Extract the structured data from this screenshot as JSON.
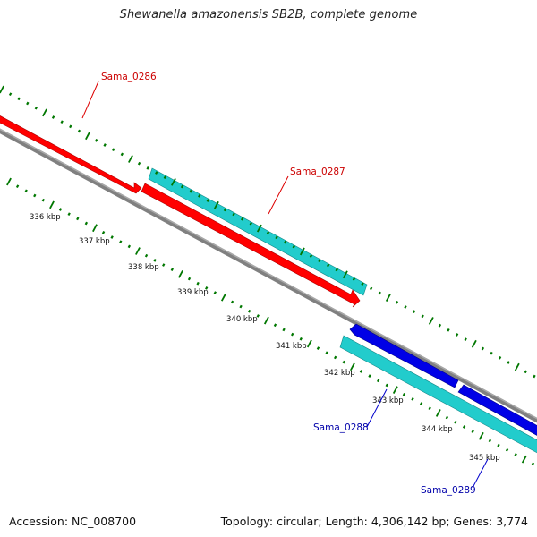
{
  "header": {
    "title": "Shewanella amazonensis SB2B, complete genome"
  },
  "footer": {
    "accession": "Accession: NC_008700",
    "summary": "Topology: circular; Length: 4,306,142 bp; Genes: 3,774"
  },
  "colors": {
    "forward_cds": "#ff0000",
    "reverse_cds": "#0000e6",
    "rna_band": "#22cccc",
    "backbone": "#808080",
    "tick": "#007700",
    "label_forward": "#cc0000",
    "label_reverse": "#0000aa"
  },
  "ticks": {
    "labels": [
      "336 kbp",
      "337 kbp",
      "338 kbp",
      "339 kbp",
      "340 kbp",
      "341 kbp",
      "342 kbp",
      "343 kbp",
      "344 kbp",
      "345 kbp"
    ]
  },
  "genes": [
    {
      "name": "Sama_0286",
      "strand": "forward",
      "icon": "arrow-right"
    },
    {
      "name": "Sama_0287",
      "strand": "forward",
      "icon": "arrow-right"
    },
    {
      "name": "Sama_0288",
      "strand": "reverse",
      "icon": "arrow-left"
    },
    {
      "name": "Sama_0289",
      "strand": "reverse",
      "icon": "arrow-left"
    }
  ]
}
